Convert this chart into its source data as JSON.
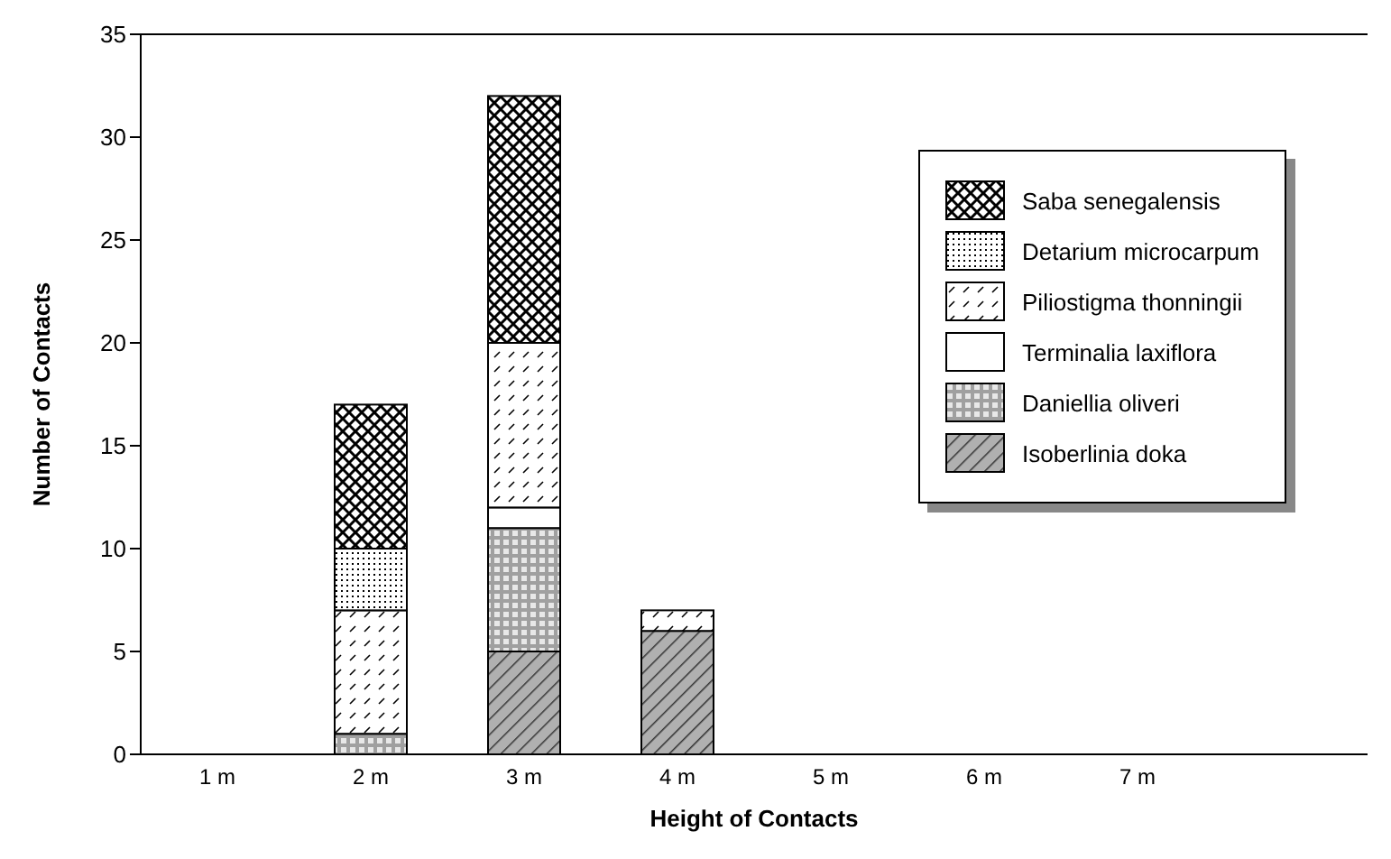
{
  "chart_data": {
    "type": "bar",
    "stacked": true,
    "xlabel": "Height of Contacts",
    "ylabel": "Number of Contacts",
    "categories": [
      "1 m",
      "2 m",
      "3 m",
      "4 m",
      "5 m",
      "6 m",
      "7 m",
      null
    ],
    "series": [
      {
        "name": "Isoberlinia doka",
        "color": "#b0b0b0",
        "values": [
          0,
          0,
          5,
          6,
          0,
          0,
          0,
          0
        ]
      },
      {
        "name": "Daniellia oliveri",
        "color": "#a0a0a0",
        "values": [
          0,
          1,
          6,
          0,
          0,
          0,
          0,
          0
        ]
      },
      {
        "name": "Terminalia laxiflora",
        "color": "#ffffff",
        "values": [
          0,
          0,
          1,
          0,
          0,
          0,
          0,
          0
        ]
      },
      {
        "name": "Piliostigma thonningii",
        "color": "#000000",
        "values": [
          0,
          6,
          8,
          1,
          0,
          0,
          0,
          0
        ]
      },
      {
        "name": "Detarium microcarpum",
        "color": "#000000",
        "values": [
          0,
          3,
          0,
          0,
          0,
          0,
          0,
          0
        ]
      },
      {
        "name": "Saba senegalensis",
        "color": "#000000",
        "values": [
          0,
          7,
          12,
          0,
          0,
          0,
          0,
          0
        ]
      }
    ],
    "ylim": [
      0,
      35
    ],
    "yticks": [
      0,
      5,
      10,
      15,
      20,
      25,
      30,
      35
    ],
    "grid": false,
    "legend": "top right"
  }
}
